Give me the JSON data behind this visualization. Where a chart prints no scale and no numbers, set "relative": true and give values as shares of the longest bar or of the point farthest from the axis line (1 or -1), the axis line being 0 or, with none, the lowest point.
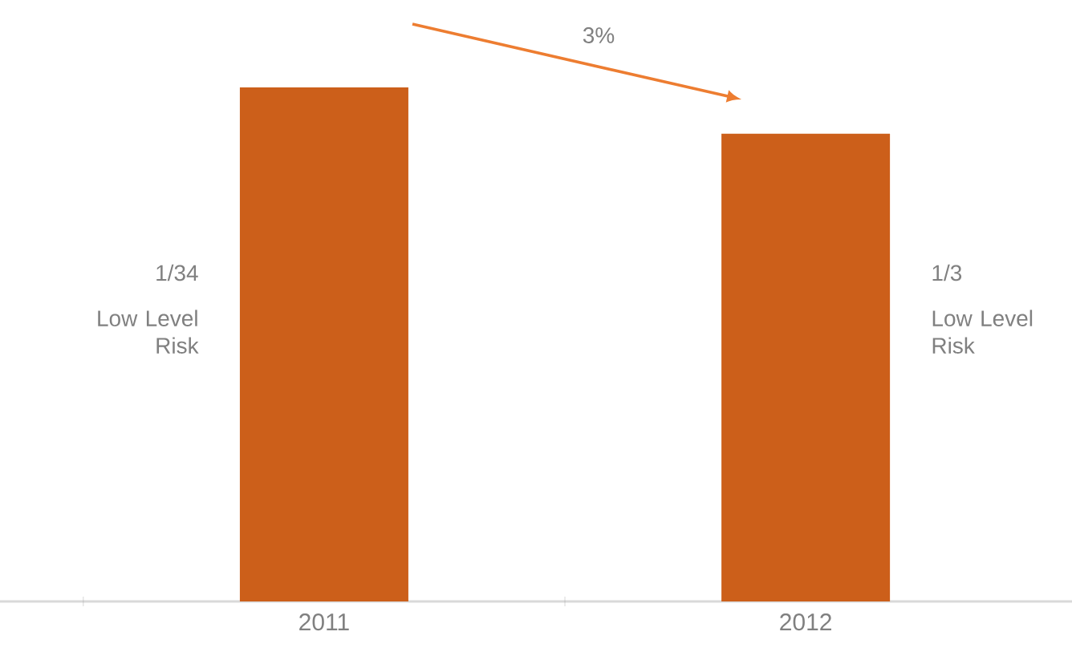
{
  "chart_data": {
    "type": "bar",
    "categories": [
      "2011",
      "2012"
    ],
    "values": [
      1,
      0.91
    ],
    "color": "#cc5f1a",
    "relative": true,
    "annotations": [
      "3%",
      "1/34",
      "Low Level Risk",
      "1/3",
      "Low Level Risk"
    ]
  }
}
